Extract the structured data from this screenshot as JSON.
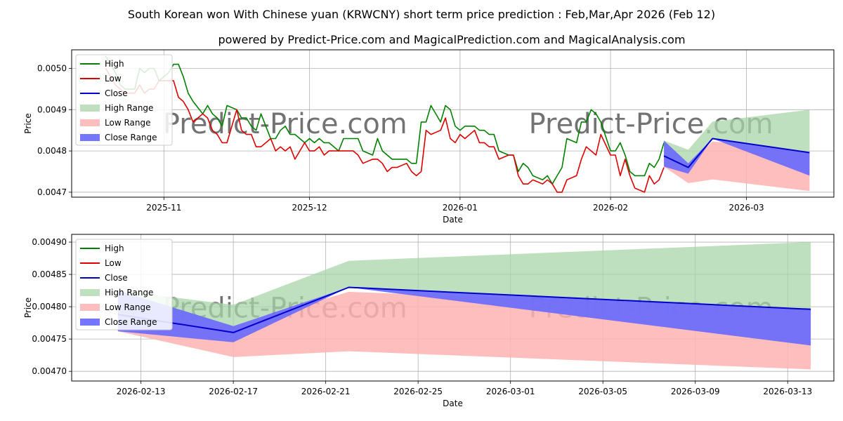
{
  "title": "South Korean won With Chinese yuan (KRWCNY) short term price prediction : Feb,Mar,Apr 2026 (Feb 12)",
  "subtitle": "powered by Predict-Price.com and MagicalPrediction.com and MagicalAnalysis.com",
  "watermark": "Predict-Price.com",
  "colors": {
    "high": "#008000",
    "low": "#dd0000",
    "close": "#0000cc",
    "high_range": "#a8d5a8",
    "low_range": "#ffb3b3",
    "close_range": "#6e6efa",
    "grid": "#b0b0b0",
    "watermark": "#c8c8c8"
  },
  "legend": [
    "High",
    "Low",
    "Close",
    "High Range",
    "Low Range",
    "Close Range"
  ],
  "chart_data": [
    {
      "type": "line",
      "name": "history",
      "xlabel": "Date",
      "ylabel": "Price",
      "xlim": [
        "2025-10-13",
        "2026-03-19"
      ],
      "ylim": [
        0.004688,
        0.005045
      ],
      "xticks": [
        "2025-11",
        "2025-12",
        "2026-01",
        "2026-02",
        "2026-03"
      ],
      "yticks": [
        0.0047,
        0.0048,
        0.0049,
        0.005
      ],
      "ytick_labels": [
        "0.0047",
        "0.0048",
        "0.0049",
        "0.0050"
      ],
      "x": [
        "2025-10-20",
        "2025-10-21",
        "2025-10-22",
        "2025-10-23",
        "2025-10-24",
        "2025-10-26",
        "2025-10-27",
        "2025-10-28",
        "2025-10-29",
        "2025-10-30",
        "2025-10-31",
        "2025-11-02",
        "2025-11-03",
        "2025-11-04",
        "2025-11-05",
        "2025-11-06",
        "2025-11-07",
        "2025-11-09",
        "2025-11-10",
        "2025-11-11",
        "2025-11-12",
        "2025-11-13",
        "2025-11-14",
        "2025-11-16",
        "2025-11-17",
        "2025-11-18",
        "2025-11-19",
        "2025-11-20",
        "2025-11-21",
        "2025-11-23",
        "2025-11-24",
        "2025-11-25",
        "2025-11-26",
        "2025-11-27",
        "2025-11-28",
        "2025-11-30",
        "2025-12-01",
        "2025-12-02",
        "2025-12-03",
        "2025-12-04",
        "2025-12-05",
        "2025-12-07",
        "2025-12-08",
        "2025-12-09",
        "2025-12-10",
        "2025-12-11",
        "2025-12-12",
        "2025-12-14",
        "2025-12-15",
        "2025-12-16",
        "2025-12-17",
        "2025-12-18",
        "2025-12-19",
        "2025-12-21",
        "2025-12-22",
        "2025-12-23",
        "2025-12-24",
        "2025-12-25",
        "2025-12-26",
        "2025-12-28",
        "2025-12-29",
        "2025-12-30",
        "2025-12-31",
        "2026-01-01",
        "2026-01-02",
        "2026-01-04",
        "2026-01-05",
        "2026-01-06",
        "2026-01-07",
        "2026-01-08",
        "2026-01-09",
        "2026-01-11",
        "2026-01-12",
        "2026-01-13",
        "2026-01-14",
        "2026-01-15",
        "2026-01-16",
        "2026-01-18",
        "2026-01-19",
        "2026-01-20",
        "2026-01-21",
        "2026-01-22",
        "2026-01-23",
        "2026-01-25",
        "2026-01-26",
        "2026-01-27",
        "2026-01-28",
        "2026-01-29",
        "2026-01-30",
        "2026-02-01",
        "2026-02-02",
        "2026-02-03",
        "2026-02-04",
        "2026-02-05",
        "2026-02-06",
        "2026-02-08",
        "2026-02-09",
        "2026-02-10",
        "2026-02-11",
        "2026-02-12"
      ],
      "series": [
        {
          "name": "High",
          "values": [
            0.00503,
            0.00501,
            0.00499,
            0.00496,
            0.00495,
            0.00495,
            0.005,
            0.00499,
            0.005,
            0.005,
            0.00497,
            0.00499,
            0.00501,
            0.00501,
            0.00498,
            0.00494,
            0.00492,
            0.00489,
            0.00491,
            0.00489,
            0.00488,
            0.00486,
            0.00491,
            0.0049,
            0.00488,
            0.00488,
            0.00486,
            0.00485,
            0.00489,
            0.00483,
            0.00483,
            0.00485,
            0.00486,
            0.00484,
            0.00484,
            0.00482,
            0.00483,
            0.00482,
            0.00483,
            0.00482,
            0.00482,
            0.0048,
            0.00483,
            0.00483,
            0.00483,
            0.00483,
            0.0048,
            0.00479,
            0.00483,
            0.0048,
            0.00479,
            0.00478,
            0.00478,
            0.00478,
            0.00477,
            0.00477,
            0.00487,
            0.00487,
            0.00491,
            0.00487,
            0.00491,
            0.0049,
            0.00486,
            0.00485,
            0.00486,
            0.00486,
            0.00485,
            0.00485,
            0.00484,
            0.00484,
            0.0048,
            0.00479,
            0.00479,
            0.00475,
            0.00477,
            0.00476,
            0.00474,
            0.00473,
            0.00474,
            0.00472,
            0.00474,
            0.00476,
            0.00483,
            0.00482,
            0.00487,
            0.00487,
            0.0049,
            0.00489,
            0.00487,
            0.0048,
            0.0048,
            0.00482,
            0.00479,
            0.00475,
            0.00474,
            0.00474,
            0.00477,
            0.00476,
            0.00478,
            0.00482
          ]
        },
        {
          "name": "Low",
          "values": [
            0.005,
            0.00498,
            0.00496,
            0.00495,
            0.00494,
            0.00494,
            0.00496,
            0.00494,
            0.00495,
            0.00495,
            0.00497,
            0.00497,
            0.00497,
            0.00493,
            0.00492,
            0.0049,
            0.00487,
            0.00489,
            0.00488,
            0.00485,
            0.00484,
            0.00482,
            0.00482,
            0.0049,
            0.00485,
            0.00484,
            0.00484,
            0.00481,
            0.00481,
            0.00483,
            0.0048,
            0.00481,
            0.0048,
            0.00481,
            0.00478,
            0.00482,
            0.0048,
            0.0048,
            0.00481,
            0.00479,
            0.0048,
            0.0048,
            0.0048,
            0.0048,
            0.0048,
            0.00479,
            0.00477,
            0.00478,
            0.00478,
            0.00477,
            0.00475,
            0.00476,
            0.00476,
            0.00477,
            0.00475,
            0.00474,
            0.00475,
            0.00485,
            0.00484,
            0.00485,
            0.00488,
            0.00483,
            0.00482,
            0.00484,
            0.00483,
            0.00485,
            0.00482,
            0.00482,
            0.00481,
            0.00481,
            0.00478,
            0.00479,
            0.00479,
            0.00474,
            0.00472,
            0.00472,
            0.00473,
            0.00472,
            0.00473,
            0.00472,
            0.0047,
            0.0047,
            0.00473,
            0.00474,
            0.00478,
            0.00481,
            0.0048,
            0.00479,
            0.00484,
            0.00479,
            0.00479,
            0.00474,
            0.00478,
            0.00474,
            0.00471,
            0.0047,
            0.00474,
            0.00472,
            0.00473,
            0.00476
          ]
        }
      ]
    },
    {
      "type": "area",
      "name": "prediction",
      "xlabel": "Date",
      "ylabel": "Price",
      "xlim": [
        "2026-02-10",
        "2026-03-15"
      ],
      "ylim": [
        0.004685,
        0.004912
      ],
      "xticks": [
        "2026-02-13",
        "2026-02-17",
        "2026-02-21",
        "2026-02-25",
        "2026-03-01",
        "2026-03-05",
        "2026-03-09",
        "2026-03-13"
      ],
      "yticks": [
        0.0047,
        0.00475,
        0.0048,
        0.00485,
        0.0049
      ],
      "ytick_labels": [
        "0.00470",
        "0.00475",
        "0.00480",
        "0.00485",
        "0.00490"
      ],
      "x": [
        "2026-02-12",
        "2026-02-17",
        "2026-02-22",
        "2026-03-14"
      ],
      "close": [
        0.004788,
        0.00476,
        0.00483,
        0.004796
      ],
      "close_range": {
        "low": [
          0.004762,
          0.004745,
          0.00483,
          0.00474
        ],
        "high": [
          0.004825,
          0.00477,
          0.00483,
          0.004796
        ]
      },
      "high_range": {
        "low": [
          0.004788,
          0.00477,
          0.00483,
          0.004796
        ],
        "high": [
          0.004825,
          0.004803,
          0.004871,
          0.0049
        ]
      },
      "low_range": {
        "low": [
          0.004762,
          0.004722,
          0.004731,
          0.004703
        ],
        "high": [
          0.004788,
          0.00477,
          0.004823,
          0.004796
        ]
      }
    }
  ]
}
